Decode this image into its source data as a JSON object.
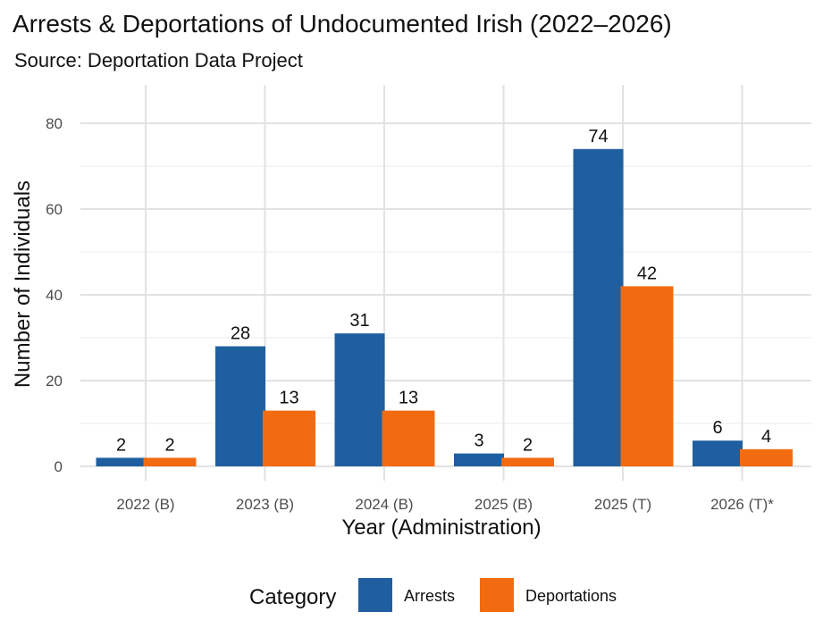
{
  "chart_data": {
    "type": "bar",
    "title": "Arrests & Deportations of Undocumented Irish (2022–2026)",
    "subtitle": "Source: Deportation Data Project",
    "xlabel": "Year (Administration)",
    "ylabel": "Number of Individuals",
    "categories": [
      "2022 (B)",
      "2023 (B)",
      "2024 (B)",
      "2025 (B)",
      "2025 (T)",
      "2026 (T)*"
    ],
    "series": [
      {
        "name": "Arrests",
        "color": "#1f5fa0",
        "values": [
          2,
          28,
          31,
          3,
          74,
          6
        ]
      },
      {
        "name": "Deportations",
        "color": "#f26b10",
        "values": [
          2,
          13,
          13,
          2,
          42,
          4
        ]
      }
    ],
    "ylim": [
      0,
      89
    ],
    "yticks": [
      0,
      20,
      40,
      60,
      80
    ],
    "grid": true,
    "legend": {
      "title": "Category",
      "position": "bottom"
    },
    "data_labels": true
  }
}
